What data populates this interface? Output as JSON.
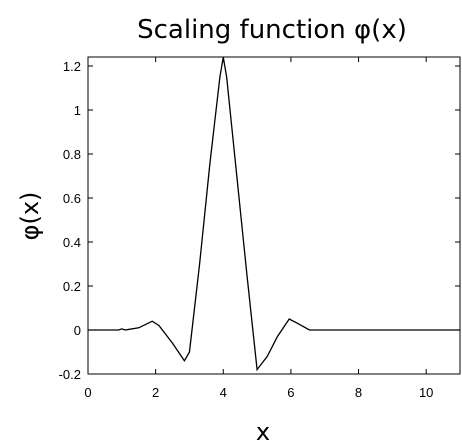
{
  "chart_data": {
    "type": "line",
    "title": "Scaling function φ(x)",
    "xlabel": "x",
    "ylabel": "φ(x)",
    "xlim": [
      0,
      11
    ],
    "ylim": [
      -0.2,
      1.25
    ],
    "grid": false,
    "x_ticks": [
      "0",
      "2",
      "4",
      "6",
      "8",
      "10"
    ],
    "y_ticks": [
      "-0.2",
      "0",
      "0.2",
      "0.4",
      "0.6",
      "0.8",
      "1",
      "1.2"
    ],
    "series": [
      {
        "color": "#000000",
        "x": [
          0,
          0.9,
          1.0,
          1.1,
          1.5,
          1.9,
          2.1,
          2.5,
          2.85,
          3.0,
          3.3,
          3.6,
          3.9,
          4.0,
          4.1,
          4.4,
          4.7,
          5.0,
          5.3,
          5.6,
          5.95,
          6.2,
          6.55,
          6.8,
          7.5,
          8.5,
          9.5,
          11
        ],
        "y": [
          0,
          0,
          0.005,
          0,
          0.01,
          0.04,
          0.02,
          -0.06,
          -0.14,
          -0.1,
          0.3,
          0.75,
          1.15,
          1.24,
          1.15,
          0.7,
          0.25,
          -0.18,
          -0.12,
          -0.03,
          0.05,
          0.03,
          0.0,
          0,
          0,
          0,
          0,
          0
        ]
      }
    ]
  }
}
